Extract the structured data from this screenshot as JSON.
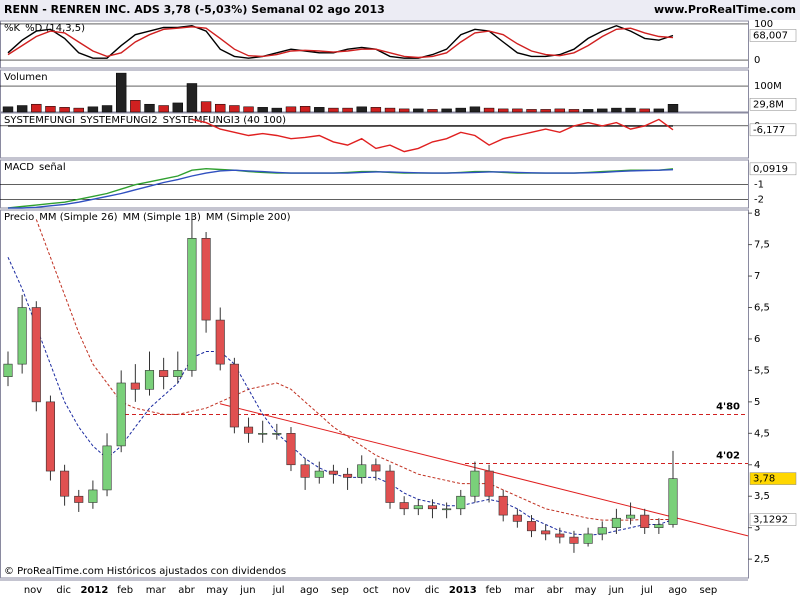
{
  "header": {
    "title": "RENN - RENREN INC. ADS   3,78 (-5,03%)   Semanal  02 ago 2013",
    "site": "www.ProRealTime.com"
  },
  "footer": "© ProRealTime.com Históricos ajustados con dividendos",
  "xlabels": [
    "nov",
    "dic",
    "2012",
    "feb",
    "mar",
    "abr",
    "may",
    "jun",
    "jul",
    "ago",
    "sep",
    "oct",
    "nov",
    "dic",
    "2013",
    "feb",
    "mar",
    "abr",
    "may",
    "jun",
    "jul",
    "ago",
    "sep"
  ],
  "chart_data": [
    {
      "type": "line",
      "ylim": [
        -22,
        108
      ],
      "yticks": [
        100,
        0
      ],
      "series": [
        {
          "name": "%K",
          "color": "#000000",
          "values": [
            20,
            55,
            80,
            85,
            60,
            20,
            5,
            5,
            40,
            70,
            80,
            90,
            90,
            95,
            80,
            30,
            10,
            5,
            10,
            20,
            30,
            25,
            20,
            20,
            30,
            35,
            30,
            10,
            5,
            5,
            15,
            30,
            70,
            85,
            80,
            50,
            20,
            10,
            10,
            15,
            30,
            60,
            80,
            95,
            80,
            60,
            55,
            68.007
          ],
          "last_label": "68,007"
        },
        {
          "name": "%D (14,3,5)",
          "color": "#d02020",
          "values": [
            15,
            40,
            65,
            80,
            75,
            50,
            25,
            10,
            20,
            50,
            70,
            85,
            88,
            92,
            88,
            60,
            30,
            12,
            10,
            15,
            25,
            27,
            25,
            22,
            25,
            30,
            30,
            20,
            10,
            7,
            10,
            20,
            50,
            75,
            80,
            70,
            45,
            25,
            15,
            12,
            20,
            40,
            65,
            85,
            88,
            75,
            65,
            62
          ]
        }
      ]
    },
    {
      "type": "bar",
      "title": "Volumen",
      "ylim": [
        0,
        162
      ],
      "yticks": [
        {
          "value": 100,
          "label": "100M"
        }
      ],
      "series": [
        {
          "name": "Volumen",
          "color": "#d02020",
          "values": [
            20,
            25,
            30,
            22,
            18,
            15,
            20,
            25,
            150,
            45,
            30,
            25,
            35,
            110,
            40,
            30,
            25,
            20,
            18,
            15,
            20,
            22,
            18,
            15,
            15,
            20,
            18,
            15,
            12,
            12,
            10,
            12,
            15,
            20,
            15,
            12,
            12,
            10,
            10,
            12,
            10,
            10,
            12,
            15,
            15,
            12,
            12,
            29.8
          ],
          "last_label": "29,8M"
        }
      ]
    },
    {
      "type": "line",
      "ylim": [
        -50,
        20
      ],
      "yticks": [
        0
      ],
      "series": [
        {
          "name": "SYSTEMFUNGI",
          "color": "#000000",
          "values": [
            0,
            0,
            0,
            0,
            0,
            0,
            0,
            0,
            0,
            0,
            0,
            0,
            0,
            0,
            0,
            0,
            0,
            0,
            0,
            0,
            0,
            0,
            0,
            0,
            0,
            0,
            0,
            0,
            0,
            0,
            0,
            0,
            0,
            0,
            0,
            0,
            0,
            0,
            0,
            0,
            0,
            0,
            0,
            0,
            0,
            0,
            0,
            0
          ]
        },
        {
          "name": "SYSTEMFUNGI2",
          "color": "#e02020",
          "values": [
            null,
            null,
            null,
            null,
            null,
            null,
            null,
            null,
            null,
            null,
            null,
            null,
            null,
            10,
            5,
            -5,
            -10,
            -15,
            -12,
            -15,
            -20,
            -18,
            -15,
            -25,
            -30,
            -20,
            -35,
            -30,
            -40,
            -35,
            -25,
            -20,
            -10,
            -15,
            -30,
            -20,
            -15,
            -10,
            -5,
            -10,
            0,
            5,
            0,
            5,
            -5,
            0,
            10,
            -6.177
          ],
          "last_label": "-6,177"
        },
        {
          "name": "SYSTEMFUNGI3 (40 100)",
          "color": "#2020c0",
          "values": [
            null,
            null,
            null,
            null,
            null,
            null,
            null,
            null,
            null,
            null,
            null,
            null,
            null,
            null,
            null,
            null,
            null,
            null,
            null,
            null,
            null,
            null,
            null,
            null,
            null,
            null,
            null,
            null,
            null,
            null,
            null,
            null,
            null,
            null,
            null,
            null,
            null,
            null,
            null,
            null,
            null,
            null,
            null,
            null,
            null,
            null,
            null,
            null
          ]
        }
      ]
    },
    {
      "type": "line",
      "ylim": [
        -2.6,
        0.7
      ],
      "yticks": [
        -1,
        -2
      ],
      "series": [
        {
          "name": "MACD",
          "color": "#30a030",
          "values": [
            -2.6,
            -2.5,
            -2.4,
            -2.3,
            -2.2,
            -2.0,
            -1.8,
            -1.6,
            -1.3,
            -1.0,
            -0.8,
            -0.6,
            -0.4,
            0.0,
            0.1,
            0.05,
            0.0,
            -0.1,
            -0.15,
            -0.2,
            -0.2,
            -0.2,
            -0.2,
            -0.2,
            -0.15,
            -0.1,
            -0.1,
            -0.15,
            -0.2,
            -0.2,
            -0.2,
            -0.2,
            -0.15,
            -0.1,
            -0.1,
            -0.15,
            -0.2,
            -0.2,
            -0.2,
            -0.2,
            -0.2,
            -0.15,
            -0.1,
            -0.05,
            0.0,
            0.0,
            0.0,
            0.0919
          ],
          "last_label": "0,0919"
        },
        {
          "name": "señal",
          "color": "#3050c0",
          "values": [
            -2.6,
            -2.6,
            -2.55,
            -2.45,
            -2.35,
            -2.2,
            -2.0,
            -1.8,
            -1.6,
            -1.35,
            -1.1,
            -0.85,
            -0.65,
            -0.4,
            -0.2,
            -0.05,
            0.0,
            -0.05,
            -0.1,
            -0.15,
            -0.2,
            -0.2,
            -0.2,
            -0.2,
            -0.2,
            -0.15,
            -0.12,
            -0.12,
            -0.15,
            -0.18,
            -0.2,
            -0.2,
            -0.18,
            -0.15,
            -0.12,
            -0.12,
            -0.15,
            -0.18,
            -0.2,
            -0.2,
            -0.2,
            -0.18,
            -0.15,
            -0.1,
            -0.05,
            -0.02,
            0.0,
            0.03
          ]
        }
      ]
    },
    {
      "type": "candlestick",
      "title": "Precio",
      "ylim": [
        2.2,
        8.05
      ],
      "yticks": [
        8,
        {
          "value": 7.5,
          "label": "7,5"
        },
        7,
        {
          "value": 6.5,
          "label": "6,5"
        },
        6,
        {
          "value": 5.5,
          "label": "5,5"
        },
        5,
        {
          "value": 4.5,
          "label": "4,5"
        },
        4,
        {
          "value": 3.5,
          "label": "3,5"
        },
        3,
        {
          "value": 2.5,
          "label": "2,5"
        }
      ],
      "open": [
        5.4,
        5.6,
        6.5,
        5.0,
        3.9,
        3.5,
        3.4,
        3.6,
        4.3,
        5.3,
        5.2,
        5.5,
        5.4,
        5.5,
        7.6,
        6.3,
        5.6,
        4.6,
        4.5,
        4.5,
        4.5,
        4.0,
        3.8,
        3.9,
        3.85,
        3.8,
        4.0,
        3.9,
        3.4,
        3.3,
        3.35,
        3.3,
        3.3,
        3.5,
        3.9,
        3.5,
        3.2,
        3.1,
        2.95,
        2.9,
        2.85,
        2.75,
        2.9,
        3.0,
        3.15,
        3.2,
        3.0,
        3.05
      ],
      "high": [
        5.8,
        6.7,
        6.6,
        5.1,
        4.0,
        3.6,
        3.75,
        4.5,
        5.5,
        5.6,
        5.8,
        5.7,
        5.8,
        8.0,
        7.7,
        6.5,
        5.7,
        4.75,
        4.7,
        4.65,
        4.6,
        4.1,
        4.05,
        4.0,
        3.95,
        4.15,
        4.1,
        4.0,
        3.5,
        3.45,
        3.45,
        3.4,
        3.6,
        4.05,
        4.0,
        3.6,
        3.3,
        3.2,
        3.05,
        3.0,
        2.95,
        3.0,
        3.1,
        3.3,
        3.4,
        3.3,
        3.15,
        4.22
      ],
      "low": [
        5.25,
        5.45,
        4.85,
        3.75,
        3.35,
        3.25,
        3.3,
        3.5,
        4.2,
        5.0,
        5.1,
        5.2,
        5.3,
        5.4,
        6.1,
        5.5,
        4.5,
        4.35,
        4.35,
        4.4,
        3.9,
        3.6,
        3.7,
        3.7,
        3.6,
        3.7,
        3.75,
        3.3,
        3.2,
        3.2,
        3.15,
        3.15,
        3.2,
        3.4,
        3.4,
        3.1,
        3.0,
        2.85,
        2.8,
        2.75,
        2.6,
        2.7,
        2.8,
        2.9,
        3.05,
        2.9,
        2.9,
        3.0
      ],
      "close": [
        5.6,
        6.5,
        5.0,
        3.9,
        3.5,
        3.4,
        3.6,
        4.3,
        5.3,
        5.2,
        5.5,
        5.4,
        5.5,
        7.6,
        6.3,
        5.6,
        4.6,
        4.5,
        4.5,
        4.5,
        4.0,
        3.8,
        3.9,
        3.85,
        3.8,
        4.0,
        3.9,
        3.4,
        3.3,
        3.35,
        3.3,
        3.3,
        3.5,
        3.9,
        3.5,
        3.2,
        3.1,
        2.95,
        2.9,
        2.85,
        2.75,
        2.9,
        3.0,
        3.15,
        3.2,
        3.0,
        3.05,
        3.78
      ],
      "close_label": "3,78",
      "series": [
        {
          "name": "MM (Simple 26)",
          "color": "#c03020",
          "values": [
            null,
            null,
            7.9,
            7.3,
            6.7,
            6.1,
            5.6,
            5.3,
            5.0,
            4.9,
            4.85,
            4.8,
            4.8,
            4.85,
            4.9,
            5.0,
            5.1,
            5.2,
            5.25,
            5.3,
            5.2,
            5.0,
            4.8,
            4.6,
            4.45,
            4.3,
            4.15,
            4.05,
            3.95,
            3.85,
            3.8,
            3.75,
            3.7,
            3.7,
            3.7,
            3.6,
            3.5,
            3.4,
            3.3,
            3.25,
            3.2,
            3.15,
            3.12,
            3.12,
            3.12,
            3.13,
            3.13,
            3.13
          ]
        },
        {
          "name": "MM (Simple 13)",
          "color": "#1a2aa0",
          "values": [
            7.3,
            6.8,
            6.2,
            5.6,
            5.0,
            4.6,
            4.3,
            4.1,
            4.3,
            4.6,
            4.9,
            5.1,
            5.3,
            5.7,
            5.8,
            5.8,
            5.6,
            5.2,
            4.8,
            4.5,
            4.3,
            4.1,
            3.95,
            3.85,
            3.8,
            3.8,
            3.8,
            3.7,
            3.55,
            3.45,
            3.4,
            3.35,
            3.35,
            3.4,
            3.45,
            3.4,
            3.3,
            3.15,
            3.05,
            2.95,
            2.9,
            2.88,
            2.9,
            2.95,
            3.0,
            3.05,
            3.05,
            3.1292
          ],
          "last_label": "3,1292"
        },
        {
          "name": "MM (Simple 200)",
          "color": "#c03020",
          "values": [
            null,
            null,
            null,
            null,
            null,
            null,
            null,
            null,
            null,
            null,
            null,
            null,
            null,
            null,
            null,
            null,
            null,
            null,
            null,
            null,
            null,
            null,
            null,
            null,
            null,
            null,
            null,
            null,
            null,
            null,
            null,
            null,
            null,
            null,
            null,
            null,
            null,
            null,
            null,
            null,
            null,
            null,
            null,
            null,
            null,
            null,
            null,
            null
          ]
        }
      ],
      "levels": [
        {
          "value": 4.8,
          "label": "4'80"
        },
        {
          "value": 4.02,
          "label": "4'02"
        }
      ],
      "trendline": [
        4.97,
        2.87
      ]
    }
  ]
}
